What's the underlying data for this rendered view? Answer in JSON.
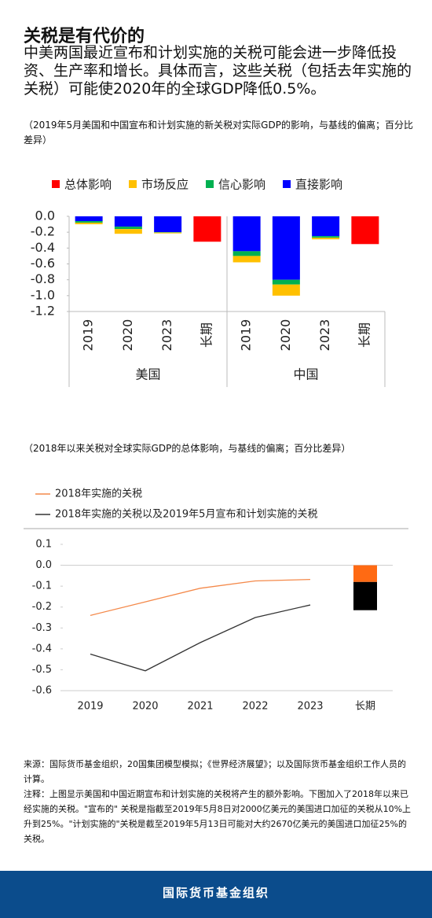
{
  "header": {
    "title": "关税是有代价的",
    "lead": "中美两国最近宣布和计划实施的关税可能会进一步降低投资、生产率和增长。具体而言，这些关税（包括去年实施的关税）可能使2020年的全球GDP降低0.5%。"
  },
  "chart_data": [
    {
      "type": "stacked_bar",
      "subtitle": "（2019年5月美国和中国宣布和计划实施的新关税对实际GDP的影响，与基线的偏离；百分比差异）",
      "groups": [
        "美国",
        "中国"
      ],
      "categories": [
        "2019",
        "2020",
        "2023",
        "长期",
        "2019",
        "2020",
        "2023",
        "长期"
      ],
      "series": [
        {
          "name": "总体影响",
          "color": "#ff0000",
          "values": [
            null,
            null,
            null,
            -0.32,
            null,
            null,
            null,
            -0.35
          ]
        },
        {
          "name": "市场反应",
          "color": "#ffc000",
          "values": [
            -0.02,
            -0.06,
            -0.01,
            null,
            -0.08,
            -0.14,
            -0.02,
            null
          ]
        },
        {
          "name": "信心影响",
          "color": "#00b050",
          "values": [
            -0.02,
            -0.03,
            -0.005,
            null,
            -0.06,
            -0.06,
            -0.02,
            null
          ]
        },
        {
          "name": "直接影响",
          "color": "#0000ff",
          "values": [
            -0.06,
            -0.13,
            -0.2,
            null,
            -0.44,
            -0.8,
            -0.25,
            null
          ]
        }
      ],
      "ylim": [
        -1.2,
        0
      ],
      "yticks": [
        {
          "value": 0,
          "label": "0.0"
        },
        -0.2,
        -0.4,
        -0.6,
        -0.8,
        {
          "value": -1,
          "label": "-1.0"
        },
        -1.2
      ]
    },
    {
      "type": "line",
      "subtitle": "（2018年以来关税对全球实际GDP的总体影响，与基线的偏离；百分比差异）",
      "categories": [
        "2019",
        "2020",
        "2021",
        "2022",
        "2023",
        "长期"
      ],
      "series": [
        {
          "name": "2018年实施的关税",
          "color": "#f4894a",
          "values": [
            -0.24,
            -0.175,
            -0.11,
            -0.075,
            -0.068,
            -0.08
          ]
        },
        {
          "name": "2018年实施的关税以及2019年5月宣布和计划实施的关税",
          "color": "#333333",
          "values": [
            -0.425,
            -0.505,
            -0.37,
            -0.25,
            -0.19,
            -0.135
          ]
        }
      ],
      "ylim": [
        -0.6,
        0.1
      ],
      "yticks": [
        0.1,
        {
          "value": 0,
          "label": "0.0"
        },
        -0.1,
        -0.2,
        -0.3,
        -0.4,
        -0.5,
        -0.6
      ]
    }
  ],
  "notes": {
    "source": "来源：国际货币基金组织，20国集团模型模拟；《世界经济展望》；以及国际货币基金组织工作人员的计算。",
    "note": "注释：上图显示美国和中国近期宣布和计划实施的关税将产生的额外影响。下图加入了2018年以来已经实施的关税。\"宣布的\" 关税是指截至2019年5月8日对2000亿美元的美国进口加征的关税从10%上升到25%。\"计划实施的\"关税是截至2019年5月13日可能对大约2670亿美元的美国进口加征25%的关税。"
  },
  "footer": "国际货币基金组织"
}
